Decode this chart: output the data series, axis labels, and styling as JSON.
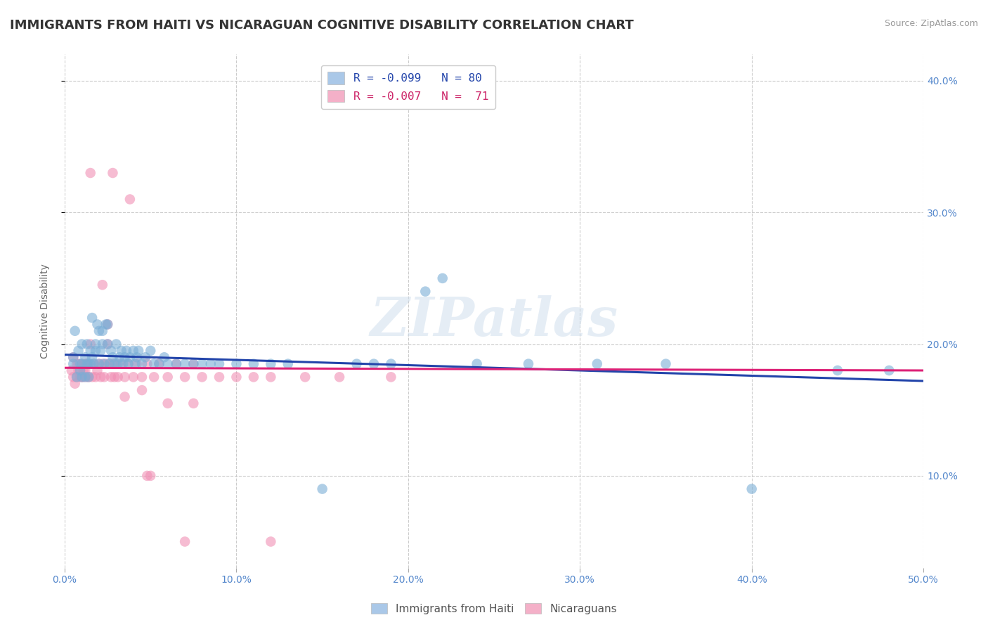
{
  "title": "IMMIGRANTS FROM HAITI VS NICARAGUAN COGNITIVE DISABILITY CORRELATION CHART",
  "source_text": "Source: ZipAtlas.com",
  "ylabel": "Cognitive Disability",
  "xlim": [
    0.0,
    0.5
  ],
  "ylim": [
    0.03,
    0.42
  ],
  "xticks": [
    0.0,
    0.1,
    0.2,
    0.3,
    0.4,
    0.5
  ],
  "yticks": [
    0.1,
    0.2,
    0.3,
    0.4
  ],
  "ytick_labels": [
    "10.0%",
    "20.0%",
    "30.0%",
    "40.0%"
  ],
  "xtick_labels": [
    "0.0%",
    "10.0%",
    "20.0%",
    "30.0%",
    "40.0%",
    "50.0%"
  ],
  "legend_label_top": [
    {
      "label": "R = -0.099   N = 80",
      "facecolor": "#aac8e8",
      "textcolor": "#2244aa"
    },
    {
      "label": "R = -0.007   N =  71",
      "facecolor": "#f4b0c8",
      "textcolor": "#cc2266"
    }
  ],
  "legend_label_bottom": [
    "Immigrants from Haiti",
    "Nicaraguans"
  ],
  "watermark": "ZIPatlas",
  "blue_scatter_x": [
    0.005,
    0.005,
    0.006,
    0.007,
    0.008,
    0.009,
    0.009,
    0.01,
    0.01,
    0.01,
    0.012,
    0.012,
    0.013,
    0.013,
    0.014,
    0.014,
    0.015,
    0.015,
    0.016,
    0.016,
    0.017,
    0.018,
    0.018,
    0.019,
    0.02,
    0.02,
    0.021,
    0.022,
    0.022,
    0.023,
    0.024,
    0.025,
    0.025,
    0.026,
    0.027,
    0.028,
    0.029,
    0.03,
    0.031,
    0.032,
    0.033,
    0.034,
    0.035,
    0.036,
    0.037,
    0.038,
    0.04,
    0.041,
    0.042,
    0.043,
    0.045,
    0.047,
    0.05,
    0.052,
    0.055,
    0.058,
    0.06,
    0.065,
    0.07,
    0.075,
    0.08,
    0.085,
    0.09,
    0.1,
    0.11,
    0.12,
    0.13,
    0.15,
    0.17,
    0.19,
    0.21,
    0.24,
    0.27,
    0.31,
    0.35,
    0.4,
    0.45,
    0.48,
    0.18,
    0.22
  ],
  "blue_scatter_y": [
    0.19,
    0.185,
    0.21,
    0.175,
    0.195,
    0.18,
    0.185,
    0.2,
    0.175,
    0.185,
    0.19,
    0.175,
    0.185,
    0.2,
    0.185,
    0.175,
    0.195,
    0.185,
    0.19,
    0.22,
    0.185,
    0.195,
    0.2,
    0.215,
    0.21,
    0.185,
    0.195,
    0.2,
    0.21,
    0.185,
    0.215,
    0.2,
    0.215,
    0.185,
    0.195,
    0.19,
    0.185,
    0.2,
    0.185,
    0.19,
    0.195,
    0.185,
    0.19,
    0.195,
    0.185,
    0.19,
    0.195,
    0.185,
    0.19,
    0.195,
    0.185,
    0.19,
    0.195,
    0.185,
    0.185,
    0.19,
    0.185,
    0.185,
    0.185,
    0.185,
    0.185,
    0.185,
    0.185,
    0.185,
    0.185,
    0.185,
    0.185,
    0.09,
    0.185,
    0.185,
    0.24,
    0.185,
    0.185,
    0.185,
    0.185,
    0.09,
    0.18,
    0.18,
    0.185,
    0.25
  ],
  "pink_scatter_x": [
    0.004,
    0.005,
    0.005,
    0.006,
    0.007,
    0.007,
    0.008,
    0.008,
    0.009,
    0.009,
    0.01,
    0.01,
    0.011,
    0.011,
    0.012,
    0.012,
    0.013,
    0.013,
    0.014,
    0.014,
    0.015,
    0.016,
    0.017,
    0.018,
    0.019,
    0.02,
    0.021,
    0.022,
    0.023,
    0.024,
    0.025,
    0.026,
    0.027,
    0.028,
    0.029,
    0.03,
    0.031,
    0.033,
    0.035,
    0.037,
    0.04,
    0.042,
    0.045,
    0.048,
    0.052,
    0.055,
    0.06,
    0.065,
    0.07,
    0.075,
    0.08,
    0.09,
    0.1,
    0.11,
    0.12,
    0.14,
    0.16,
    0.19,
    0.05,
    0.025,
    0.035,
    0.045,
    0.06,
    0.075,
    0.015,
    0.022,
    0.028,
    0.038,
    0.048,
    0.07,
    0.12
  ],
  "pink_scatter_y": [
    0.18,
    0.175,
    0.19,
    0.17,
    0.185,
    0.175,
    0.18,
    0.185,
    0.175,
    0.18,
    0.185,
    0.175,
    0.18,
    0.175,
    0.185,
    0.18,
    0.175,
    0.185,
    0.175,
    0.185,
    0.2,
    0.175,
    0.185,
    0.175,
    0.18,
    0.185,
    0.175,
    0.185,
    0.175,
    0.185,
    0.2,
    0.185,
    0.175,
    0.185,
    0.175,
    0.185,
    0.175,
    0.185,
    0.175,
    0.185,
    0.175,
    0.185,
    0.175,
    0.185,
    0.175,
    0.185,
    0.175,
    0.185,
    0.175,
    0.185,
    0.175,
    0.175,
    0.175,
    0.175,
    0.175,
    0.175,
    0.175,
    0.175,
    0.1,
    0.215,
    0.16,
    0.165,
    0.155,
    0.155,
    0.33,
    0.245,
    0.33,
    0.31,
    0.1,
    0.05,
    0.05
  ],
  "blue_line_x": [
    0.0,
    0.5
  ],
  "blue_line_y": [
    0.192,
    0.172
  ],
  "pink_line_x": [
    0.0,
    0.5
  ],
  "pink_line_y": [
    0.182,
    0.18
  ],
  "scatter_alpha": 0.6,
  "scatter_size": 110,
  "blue_color": "#7aaed6",
  "pink_color": "#f090b4",
  "blue_line_color": "#2244aa",
  "pink_line_color": "#dd2277",
  "bg_color": "#ffffff",
  "grid_color": "#cccccc",
  "axis_color": "#5588cc",
  "title_color": "#333333",
  "title_fontsize": 13,
  "label_fontsize": 10
}
